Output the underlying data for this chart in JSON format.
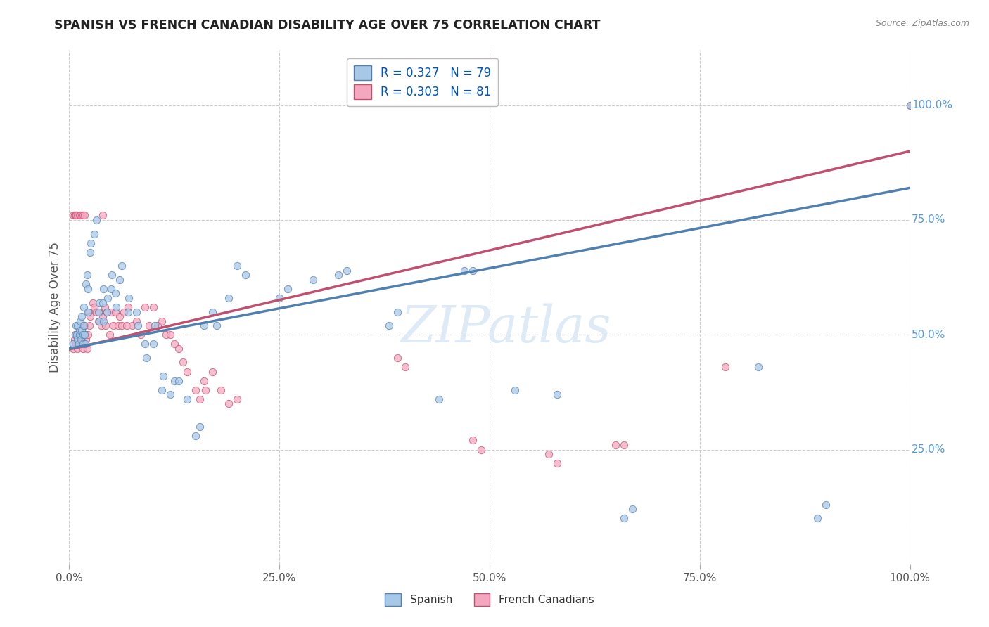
{
  "title": "SPANISH VS FRENCH CANADIAN DISABILITY AGE OVER 75 CORRELATION CHART",
  "source": "Source: ZipAtlas.com",
  "ylabel": "Disability Age Over 75",
  "watermark": "ZIPatlas",
  "legend": {
    "spanish": {
      "R": 0.327,
      "N": 79,
      "color": "#a8c8e8",
      "label": "Spanish"
    },
    "french": {
      "R": 0.303,
      "N": 81,
      "color": "#f4a8c0",
      "label": "French Canadians"
    }
  },
  "spanish_points": [
    [
      0.005,
      0.48
    ],
    [
      0.007,
      0.5
    ],
    [
      0.008,
      0.52
    ],
    [
      0.009,
      0.5
    ],
    [
      0.01,
      0.49
    ],
    [
      0.01,
      0.52
    ],
    [
      0.011,
      0.48
    ],
    [
      0.012,
      0.5
    ],
    [
      0.013,
      0.51
    ],
    [
      0.013,
      0.53
    ],
    [
      0.014,
      0.49
    ],
    [
      0.015,
      0.51
    ],
    [
      0.015,
      0.54
    ],
    [
      0.016,
      0.5
    ],
    [
      0.016,
      0.48
    ],
    [
      0.017,
      0.52
    ],
    [
      0.017,
      0.56
    ],
    [
      0.018,
      0.5
    ],
    [
      0.019,
      0.48
    ],
    [
      0.02,
      0.61
    ],
    [
      0.021,
      0.63
    ],
    [
      0.022,
      0.6
    ],
    [
      0.022,
      0.55
    ],
    [
      0.025,
      0.68
    ],
    [
      0.026,
      0.7
    ],
    [
      0.03,
      0.72
    ],
    [
      0.032,
      0.75
    ],
    [
      0.035,
      0.55
    ],
    [
      0.036,
      0.57
    ],
    [
      0.036,
      0.53
    ],
    [
      0.04,
      0.57
    ],
    [
      0.041,
      0.6
    ],
    [
      0.041,
      0.53
    ],
    [
      0.045,
      0.55
    ],
    [
      0.046,
      0.58
    ],
    [
      0.05,
      0.6
    ],
    [
      0.051,
      0.63
    ],
    [
      0.055,
      0.59
    ],
    [
      0.056,
      0.56
    ],
    [
      0.06,
      0.62
    ],
    [
      0.062,
      0.65
    ],
    [
      0.07,
      0.55
    ],
    [
      0.071,
      0.58
    ],
    [
      0.08,
      0.55
    ],
    [
      0.082,
      0.52
    ],
    [
      0.09,
      0.48
    ],
    [
      0.092,
      0.45
    ],
    [
      0.1,
      0.48
    ],
    [
      0.102,
      0.52
    ],
    [
      0.11,
      0.38
    ],
    [
      0.112,
      0.41
    ],
    [
      0.12,
      0.37
    ],
    [
      0.125,
      0.4
    ],
    [
      0.13,
      0.4
    ],
    [
      0.14,
      0.36
    ],
    [
      0.15,
      0.28
    ],
    [
      0.155,
      0.3
    ],
    [
      0.16,
      0.52
    ],
    [
      0.17,
      0.55
    ],
    [
      0.175,
      0.52
    ],
    [
      0.19,
      0.58
    ],
    [
      0.2,
      0.65
    ],
    [
      0.21,
      0.63
    ],
    [
      0.25,
      0.58
    ],
    [
      0.26,
      0.6
    ],
    [
      0.29,
      0.62
    ],
    [
      0.32,
      0.63
    ],
    [
      0.33,
      0.64
    ],
    [
      0.38,
      0.52
    ],
    [
      0.39,
      0.55
    ],
    [
      0.44,
      0.36
    ],
    [
      0.47,
      0.64
    ],
    [
      0.48,
      0.64
    ],
    [
      0.53,
      0.38
    ],
    [
      0.58,
      0.37
    ],
    [
      0.66,
      0.1
    ],
    [
      0.67,
      0.12
    ],
    [
      0.82,
      0.43
    ],
    [
      0.89,
      0.1
    ],
    [
      0.9,
      0.13
    ],
    [
      1.0,
      1.0
    ]
  ],
  "french_points": [
    [
      0.005,
      0.47
    ],
    [
      0.006,
      0.49
    ],
    [
      0.007,
      0.5
    ],
    [
      0.008,
      0.48
    ],
    [
      0.009,
      0.5
    ],
    [
      0.01,
      0.47
    ],
    [
      0.011,
      0.49
    ],
    [
      0.012,
      0.51
    ],
    [
      0.013,
      0.48
    ],
    [
      0.014,
      0.5
    ],
    [
      0.015,
      0.49
    ],
    [
      0.016,
      0.47
    ],
    [
      0.016,
      0.52
    ],
    [
      0.017,
      0.5
    ],
    [
      0.017,
      0.48
    ],
    [
      0.018,
      0.52
    ],
    [
      0.019,
      0.5
    ],
    [
      0.02,
      0.49
    ],
    [
      0.021,
      0.47
    ],
    [
      0.022,
      0.5
    ],
    [
      0.023,
      0.55
    ],
    [
      0.024,
      0.52
    ],
    [
      0.025,
      0.54
    ],
    [
      0.028,
      0.57
    ],
    [
      0.03,
      0.56
    ],
    [
      0.032,
      0.55
    ],
    [
      0.035,
      0.53
    ],
    [
      0.036,
      0.55
    ],
    [
      0.038,
      0.52
    ],
    [
      0.04,
      0.54
    ],
    [
      0.042,
      0.56
    ],
    [
      0.043,
      0.52
    ],
    [
      0.045,
      0.55
    ],
    [
      0.048,
      0.5
    ],
    [
      0.05,
      0.55
    ],
    [
      0.052,
      0.52
    ],
    [
      0.055,
      0.55
    ],
    [
      0.058,
      0.52
    ],
    [
      0.06,
      0.54
    ],
    [
      0.062,
      0.52
    ],
    [
      0.065,
      0.55
    ],
    [
      0.068,
      0.52
    ],
    [
      0.07,
      0.56
    ],
    [
      0.075,
      0.52
    ],
    [
      0.08,
      0.53
    ],
    [
      0.085,
      0.5
    ],
    [
      0.09,
      0.56
    ],
    [
      0.095,
      0.52
    ],
    [
      0.1,
      0.56
    ],
    [
      0.105,
      0.52
    ],
    [
      0.11,
      0.53
    ],
    [
      0.115,
      0.5
    ],
    [
      0.12,
      0.5
    ],
    [
      0.125,
      0.48
    ],
    [
      0.13,
      0.47
    ],
    [
      0.135,
      0.44
    ],
    [
      0.14,
      0.42
    ],
    [
      0.15,
      0.38
    ],
    [
      0.155,
      0.36
    ],
    [
      0.16,
      0.4
    ],
    [
      0.162,
      0.38
    ],
    [
      0.17,
      0.42
    ],
    [
      0.18,
      0.38
    ],
    [
      0.19,
      0.35
    ],
    [
      0.2,
      0.36
    ],
    [
      0.39,
      0.45
    ],
    [
      0.4,
      0.43
    ],
    [
      0.48,
      0.27
    ],
    [
      0.49,
      0.25
    ],
    [
      0.57,
      0.24
    ],
    [
      0.58,
      0.22
    ],
    [
      0.65,
      0.26
    ],
    [
      0.66,
      0.26
    ],
    [
      0.78,
      0.43
    ],
    [
      1.0,
      1.0
    ],
    [
      0.005,
      0.76
    ],
    [
      0.006,
      0.76
    ],
    [
      0.007,
      0.76
    ],
    [
      0.008,
      0.76
    ],
    [
      0.01,
      0.76
    ],
    [
      0.012,
      0.76
    ],
    [
      0.013,
      0.76
    ],
    [
      0.015,
      0.76
    ],
    [
      0.016,
      0.76
    ],
    [
      0.018,
      0.76
    ],
    [
      0.04,
      0.76
    ]
  ],
  "spanish_line": {
    "x0": 0.0,
    "y0": 0.47,
    "x1": 1.0,
    "y1": 0.82
  },
  "french_line": {
    "x0": 0.0,
    "y0": 0.468,
    "x1": 1.0,
    "y1": 0.9
  },
  "bg_color": "#FFFFFF",
  "grid_color": "#CCCCCC",
  "scatter_size": 55,
  "spanish_color": "#a8c8e8",
  "french_color": "#f4a8c0",
  "spanish_edge": "#5080b0",
  "french_edge": "#c05070",
  "title_color": "#222222",
  "source_color": "#888888",
  "right_label_color": "#5599dd",
  "ylabel_color": "#555555",
  "ylim": [
    0,
    1.12
  ],
  "xlim": [
    0,
    1.0
  ]
}
